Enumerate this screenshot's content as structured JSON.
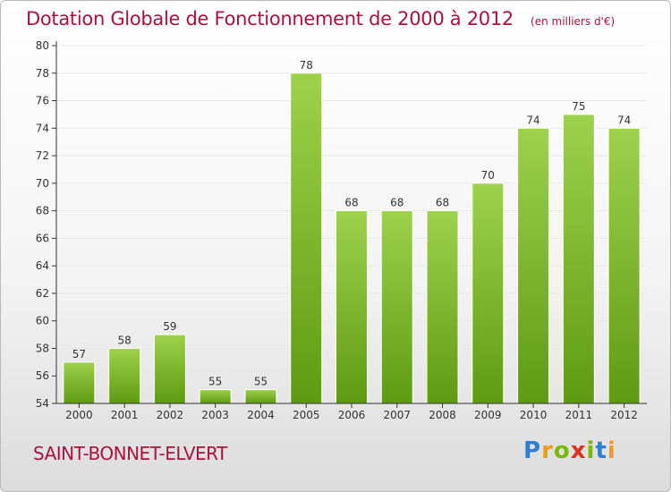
{
  "title": "Dotation Globale de Fonctionnement de 2000 à 2012",
  "subtitle": "(en milliers d'€)",
  "commune": "SAINT-BONNET-ELVERT",
  "logo": {
    "letters": [
      "P",
      "r",
      "o",
      "x",
      "i",
      "t",
      "i"
    ],
    "colors": [
      "#2c7fd1",
      "#f39a1c",
      "#7ab800",
      "#e0301e",
      "#7ab800",
      "#2c7fd1",
      "#f39a1c"
    ]
  },
  "colors": {
    "bar_top": "#9ed14c",
    "bar_bottom": "#5f9a12",
    "title": "#a8123e",
    "axis": "#333333",
    "grid": "#e6e6e6"
  },
  "chart_data": {
    "type": "bar",
    "title": "Dotation Globale de Fonctionnement de 2000 à 2012",
    "subtitle": "(en milliers d'€)",
    "categories": [
      "2000",
      "2001",
      "2002",
      "2003",
      "2004",
      "2005",
      "2006",
      "2007",
      "2008",
      "2009",
      "2010",
      "2011",
      "2012"
    ],
    "values": [
      57,
      58,
      59,
      55,
      55,
      78,
      68,
      68,
      68,
      70,
      74,
      75,
      74
    ],
    "data_labels": [
      "57",
      "58",
      "59",
      "55",
      "55",
      "78",
      "68",
      "68",
      "68",
      "70",
      "74",
      "75",
      "74"
    ],
    "xlabel": "",
    "ylabel": "",
    "ylim": [
      54,
      80
    ],
    "yticks": [
      54,
      56,
      58,
      60,
      62,
      64,
      66,
      68,
      70,
      72,
      74,
      76,
      78,
      80
    ],
    "grid": true,
    "legend": "none"
  }
}
